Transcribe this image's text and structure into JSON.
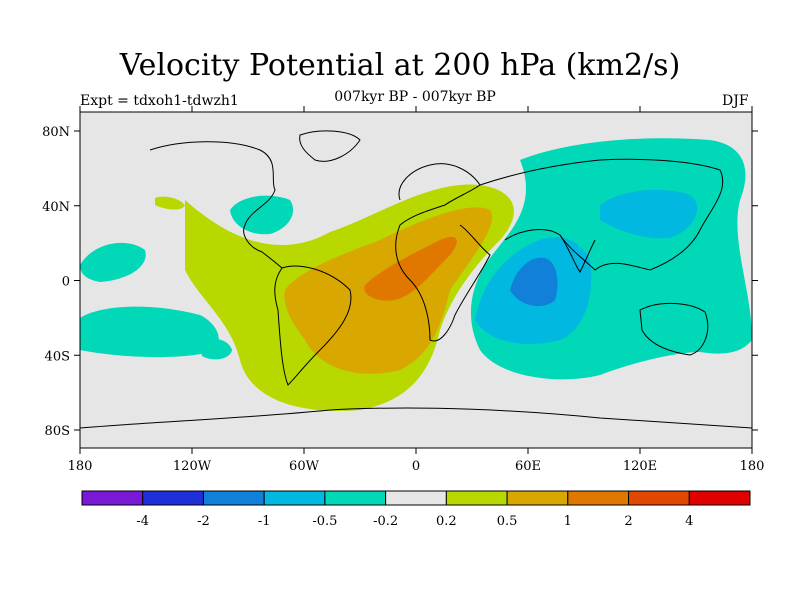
{
  "title": "Velocity Potential at 200 hPa (km2/s)",
  "subtitle": "007kyr BP - 007kyr BP",
  "experiment": "Expt = tdxoh1-tdwzh1",
  "season": "DJF",
  "map": {
    "lon_ticks": [
      "180",
      "120W",
      "60W",
      "0",
      "60E",
      "120E",
      "180"
    ],
    "lat_ticks": [
      "80N",
      "40N",
      "0",
      "40S",
      "80S"
    ],
    "background_color": "#e6e6e6"
  },
  "colorbar": {
    "colors": [
      "#7a18d8",
      "#2030d8",
      "#1080d8",
      "#00b8e0",
      "#00d8b8",
      "#e6e6e6",
      "#b8d800",
      "#d8a800",
      "#e07800",
      "#e04800",
      "#e00000"
    ],
    "labels": [
      "-4",
      "-2",
      "-1",
      "-0.5",
      "-0.2",
      "0.2",
      "0.5",
      "1",
      "2",
      "4"
    ]
  }
}
